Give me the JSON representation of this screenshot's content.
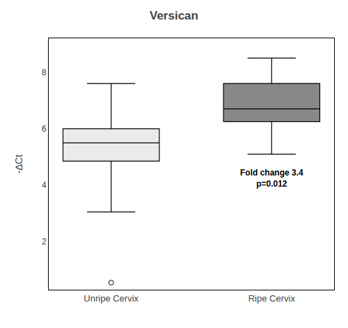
{
  "chart_data": {
    "type": "box",
    "title": "Versican",
    "ylabel": "-∆Ct",
    "categories": [
      "Unripe Cervix",
      "Ripe Cervix"
    ],
    "median": [
      5.5,
      6.7
    ],
    "q1": [
      4.85,
      6.25
    ],
    "q3": [
      6.0,
      7.6
    ],
    "whisker_low": [
      3.05,
      5.1
    ],
    "whisker_high": [
      7.6,
      8.5
    ],
    "outliers": [
      [
        0.55
      ],
      []
    ],
    "colors": [
      "#ebebeb",
      "#888888"
    ],
    "annotation": "Fold change 3.4\np=0.012",
    "ylim": [
      0.3,
      9.2
    ],
    "yticks": [
      2,
      4,
      6,
      8
    ],
    "grid": false
  }
}
